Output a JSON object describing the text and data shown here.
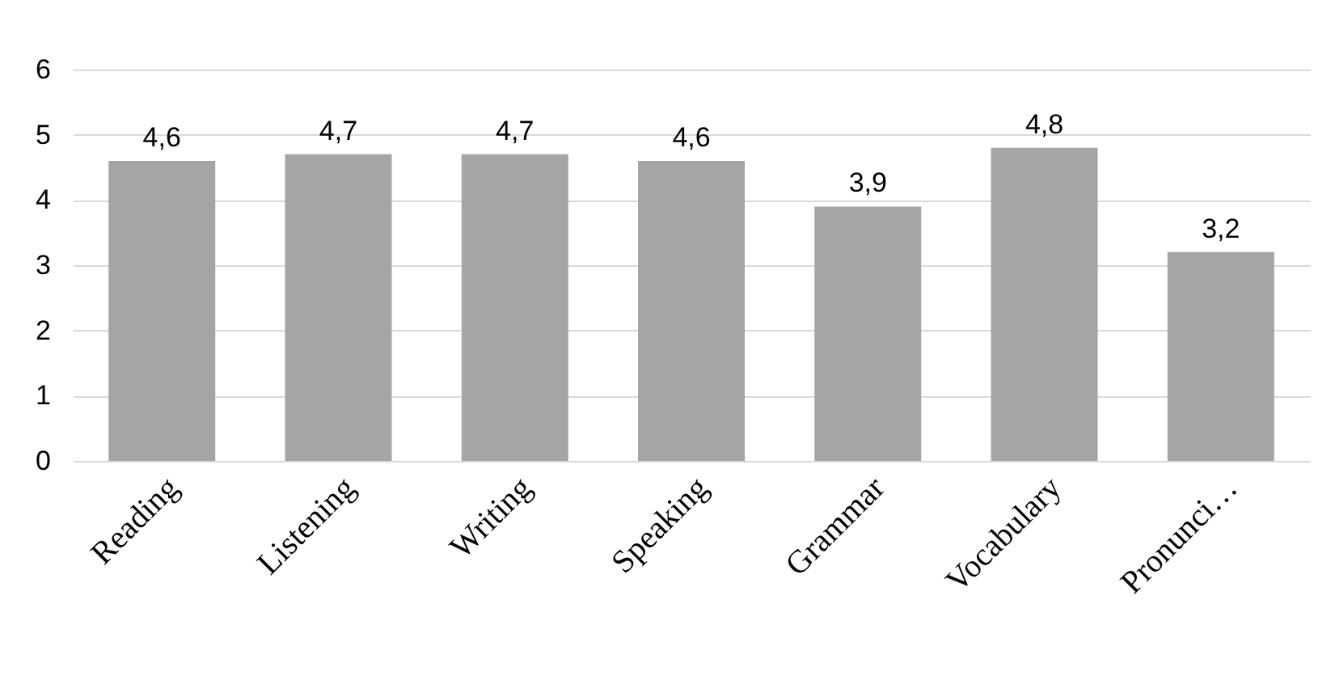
{
  "chart_data": {
    "type": "bar",
    "categories": [
      "Reading",
      "Listening",
      "Writing",
      "Speaking",
      "Grammar",
      "Vocabulary",
      "Pronunci…"
    ],
    "values": [
      4.6,
      4.7,
      4.7,
      4.6,
      3.9,
      4.8,
      3.2
    ],
    "value_labels": [
      "4,6",
      "4,7",
      "4,7",
      "4,6",
      "3,9",
      "4,8",
      "3,2"
    ],
    "color": "#a5a5a5",
    "ylim": [
      0,
      6
    ],
    "yticks": [
      0,
      1,
      2,
      3,
      4,
      5,
      6
    ],
    "grid": "y"
  }
}
